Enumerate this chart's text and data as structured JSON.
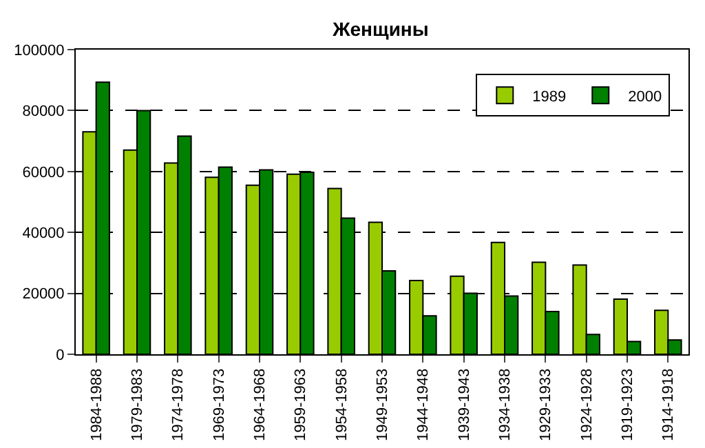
{
  "chart_data": {
    "type": "bar",
    "title": "Женщины",
    "categories": [
      "1984-1988",
      "1979-1983",
      "1974-1978",
      "1969-1973",
      "1964-1968",
      "1959-1963",
      "1954-1958",
      "1949-1953",
      "1944-1948",
      "1939-1943",
      "1934-1938",
      "1929-1933",
      "1924-1928",
      "1919-1923",
      "1914-1918"
    ],
    "series": [
      {
        "name": "1989",
        "color": "#99cc00",
        "values": [
          73000,
          67000,
          62800,
          58100,
          55500,
          59100,
          54400,
          43300,
          24200,
          25600,
          36700,
          30200,
          29300,
          18100,
          14400
        ]
      },
      {
        "name": "2000",
        "color": "#008000",
        "values": [
          89300,
          80000,
          71600,
          61400,
          60500,
          59700,
          44700,
          27400,
          12600,
          20000,
          19100,
          14000,
          6500,
          4200,
          4700
        ]
      }
    ],
    "ylim": [
      0,
      100000
    ],
    "yticks": [
      0,
      20000,
      40000,
      60000,
      80000,
      100000
    ],
    "grid": "y",
    "legend": "top right"
  }
}
